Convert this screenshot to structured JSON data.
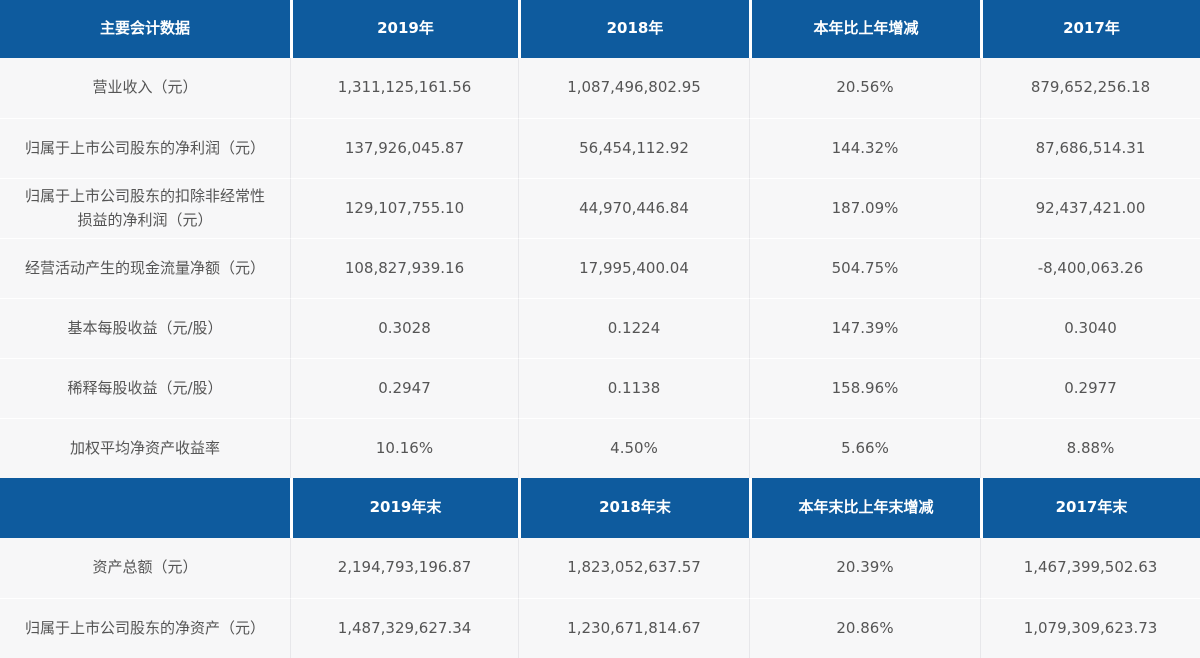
{
  "colors": {
    "header_bg": "#0e5b9e",
    "header_text": "#ffffff",
    "row_bg": "#f7f7f8",
    "body_text": "#555555",
    "column_divider": "#e7e7ea",
    "row_divider": "#ffffff"
  },
  "table": {
    "header1": {
      "label": "主要会计数据",
      "cols": [
        "2019年",
        "2018年",
        "本年比上年增减",
        "2017年"
      ]
    },
    "section1_rows": [
      {
        "label": "营业收入（元）",
        "values": [
          "1,311,125,161.56",
          "1,087,496,802.95",
          "20.56%",
          "879,652,256.18"
        ]
      },
      {
        "label": "归属于上市公司股东的净利润（元）",
        "values": [
          "137,926,045.87",
          "56,454,112.92",
          "144.32%",
          "87,686,514.31"
        ]
      },
      {
        "label": "归属于上市公司股东的扣除非经常性损益的净利润（元）",
        "values": [
          "129,107,755.10",
          "44,970,446.84",
          "187.09%",
          "92,437,421.00"
        ]
      },
      {
        "label": "经营活动产生的现金流量净额（元）",
        "values": [
          "108,827,939.16",
          "17,995,400.04",
          "504.75%",
          "-8,400,063.26"
        ]
      },
      {
        "label": "基本每股收益（元/股）",
        "values": [
          "0.3028",
          "0.1224",
          "147.39%",
          "0.3040"
        ]
      },
      {
        "label": "稀释每股收益（元/股）",
        "values": [
          "0.2947",
          "0.1138",
          "158.96%",
          "0.2977"
        ]
      },
      {
        "label": "加权平均净资产收益率",
        "values": [
          "10.16%",
          "4.50%",
          "5.66%",
          "8.88%"
        ]
      }
    ],
    "header2": {
      "label": "",
      "cols": [
        "2019年末",
        "2018年末",
        "本年末比上年末增减",
        "2017年末"
      ]
    },
    "section2_rows": [
      {
        "label": "资产总额（元）",
        "values": [
          "2,194,793,196.87",
          "1,823,052,637.57",
          "20.39%",
          "1,467,399,502.63"
        ]
      },
      {
        "label": "归属于上市公司股东的净资产（元）",
        "values": [
          "1,487,329,627.34",
          "1,230,671,814.67",
          "20.86%",
          "1,079,309,623.73"
        ]
      }
    ]
  }
}
